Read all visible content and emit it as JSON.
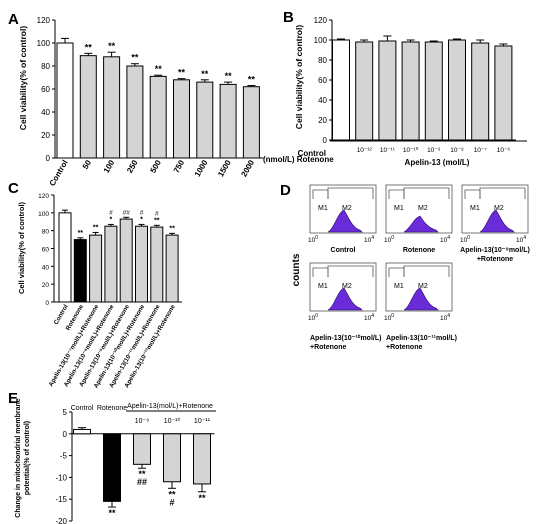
{
  "panels": {
    "A": {
      "letter": "A",
      "ylabel": "Cell viability(% of control)",
      "xunit": "(nmol/L) Rotenone"
    },
    "B": {
      "letter": "B",
      "ylabel": "Cell viability(% of control)",
      "control": "Control",
      "group_label": "Apelin-13 (mol/L)"
    },
    "C": {
      "letter": "C",
      "ylabel": "Cell viability(% of control)"
    },
    "D": {
      "letter": "D",
      "ylabel": "counts",
      "gate1": "M1",
      "gate2": "M2",
      "histograms": [
        {
          "label": "Control"
        },
        {
          "label": "Rotenone"
        },
        {
          "label": "Apelin-13(10⁻⁹mol/L)\n+Rotenone"
        },
        {
          "label": "Apelin-13(10⁻¹⁰mol/L)\n+Rotenone"
        },
        {
          "label": "Apelin-13(10⁻¹¹mol/L)\n+Rotenone"
        }
      ]
    },
    "E": {
      "letter": "E",
      "ylabel": "Change in mitochondrial membrane\npotential(% of control)",
      "group_label": "Apelin-13(mol/L)+Rotenone"
    }
  },
  "chart_data": [
    {
      "panel": "A",
      "type": "bar",
      "categories": [
        "Control",
        "50",
        "100",
        "250",
        "500",
        "750",
        "1000",
        "1500",
        "2000"
      ],
      "values": [
        100,
        89,
        88,
        80,
        71,
        68,
        66,
        64,
        62
      ],
      "errors": [
        4,
        2,
        4,
        2,
        1,
        1,
        2,
        2,
        1
      ],
      "annotations": [
        "",
        "**",
        "**",
        "**",
        "**",
        "**",
        "**",
        "**",
        "**"
      ],
      "ylim": [
        0,
        120
      ],
      "yticks": [
        0,
        20,
        40,
        60,
        80,
        100,
        120
      ],
      "xlabel": "(nmol/L) Rotenone",
      "ylabel": "Cell viability(% of control)"
    },
    {
      "panel": "B",
      "type": "bar",
      "categories": [
        "Control",
        "10-12",
        "10-11",
        "10-10",
        "10-9",
        "10-8",
        "10-7",
        "10-6"
      ],
      "tick_labels": [
        "Control",
        "10⁻¹²",
        "10⁻¹¹",
        "10⁻¹⁰",
        "10⁻⁹",
        "10⁻⁸",
        "10⁻⁷",
        "10⁻⁶"
      ],
      "values": [
        100,
        98,
        99,
        98,
        98,
        100,
        97,
        94
      ],
      "errors": [
        1,
        2,
        5,
        2,
        1,
        1,
        3,
        2
      ],
      "ylim": [
        0,
        120
      ],
      "yticks": [
        0,
        20,
        40,
        60,
        80,
        100,
        120
      ],
      "xlabel": "Apelin-13 (mol/L)",
      "ylabel": "Cell viability(% of control)"
    },
    {
      "panel": "C",
      "type": "bar",
      "categories": [
        "Control",
        "Rotenone",
        "Apelin-13(10⁻⁷mol/L)+Rotenone",
        "Apelin-13(10⁻⁸mol/L)+Rotenone",
        "Apelin-13(10⁻⁹mol/L)+Rotenone",
        "Apelin-13(10⁻¹⁰mol/L)+Rotenone",
        "Apelin-13(10⁻¹¹mol/L)+Rotenone",
        "Apelin-13(10⁻¹²mol/L)+Rotenone"
      ],
      "values": [
        100,
        70,
        75,
        85,
        93,
        85,
        84,
        75
      ],
      "errors": [
        3,
        2,
        3,
        2,
        2,
        2,
        2,
        2
      ],
      "fills": [
        "#ffffff",
        "#000000",
        "#d4d4d4",
        "#d4d4d4",
        "#d4d4d4",
        "#d4d4d4",
        "#d4d4d4",
        "#d4d4d4"
      ],
      "annotations_top": [
        "",
        "",
        "",
        "#",
        "##",
        "#",
        "#",
        ""
      ],
      "annotations": [
        "",
        "**",
        "**",
        "*",
        "",
        "*",
        "**",
        "**"
      ],
      "ylim": [
        0,
        120
      ],
      "yticks": [
        0,
        20,
        40,
        60,
        80,
        100,
        120
      ],
      "ylabel": "Cell viability(% of control)"
    },
    {
      "panel": "E",
      "type": "bar",
      "categories": [
        "Control",
        "Rotenone",
        "10-9",
        "10-10",
        "10-11"
      ],
      "tick_labels": [
        "Control",
        "Rotenone",
        "10⁻⁹",
        "10⁻¹⁰",
        "10⁻¹¹"
      ],
      "values": [
        1,
        -15.5,
        -7,
        -11,
        -11.5
      ],
      "errors": [
        0.4,
        1.3,
        0.9,
        1.5,
        1.8
      ],
      "fills": [
        "#ffffff",
        "#000000",
        "#d4d4d4",
        "#d4d4d4",
        "#d4d4d4"
      ],
      "annotations": [
        "",
        "**",
        "**\n##",
        "**\n#",
        "**"
      ],
      "ylim": [
        -20,
        5
      ],
      "yticks": [
        5,
        0,
        -5,
        -10,
        -15,
        -20
      ],
      "xlabel": "Apelin-13(mol/L)+Rotenone",
      "ylabel": "Change in mitochondrial membrane potential(% of control)"
    }
  ]
}
